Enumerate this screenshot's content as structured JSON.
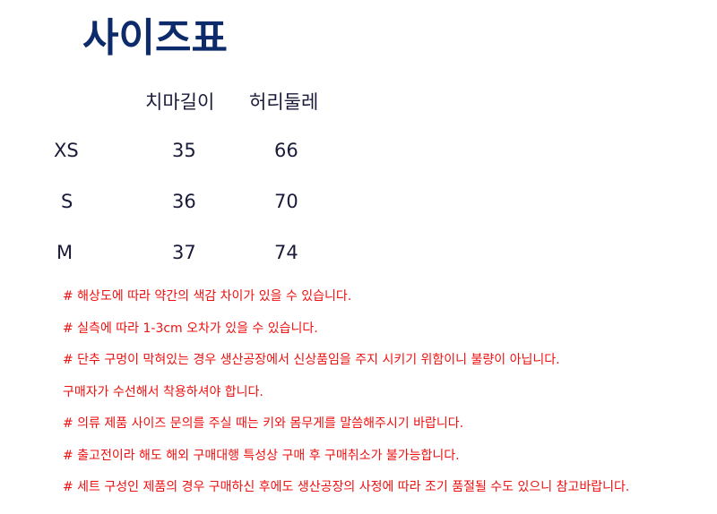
{
  "header": {
    "title": "사이즈표"
  },
  "table": {
    "columns": [
      "치마길이",
      "허리둘레"
    ],
    "rows": [
      [
        "XS",
        "35",
        "66"
      ],
      [
        "S",
        "36",
        "70"
      ],
      [
        "M",
        "37",
        "74"
      ]
    ]
  },
  "notes": [
    "# 해상도에 따라 약간의 색감 차이가 있을 수 있습니다.",
    "# 실측에 따라 1-3cm 오차가 있을 수 있습니다.",
    "# 단추 구멍이 막혀있는 경우 생산공장에서 신상품임을 주지 시키기 위함이니 불량이 아닙니다.",
    "구매자가 수선해서 착용하셔야 합니다.",
    "# 의류 제품 사이즈 문의를 주실 때는 키와 몸무게를 말씀해주시기 바랍니다.",
    "# 출고전이라 해도 해외 구매대행 특성상 구매 후 구매취소가 불가능합니다.",
    "# 세트 구성인 제품의 경우 구매하신 후에도 생산공장의 사정에 따라 조기 품절될 수도 있으니 참고바랍니다."
  ]
}
